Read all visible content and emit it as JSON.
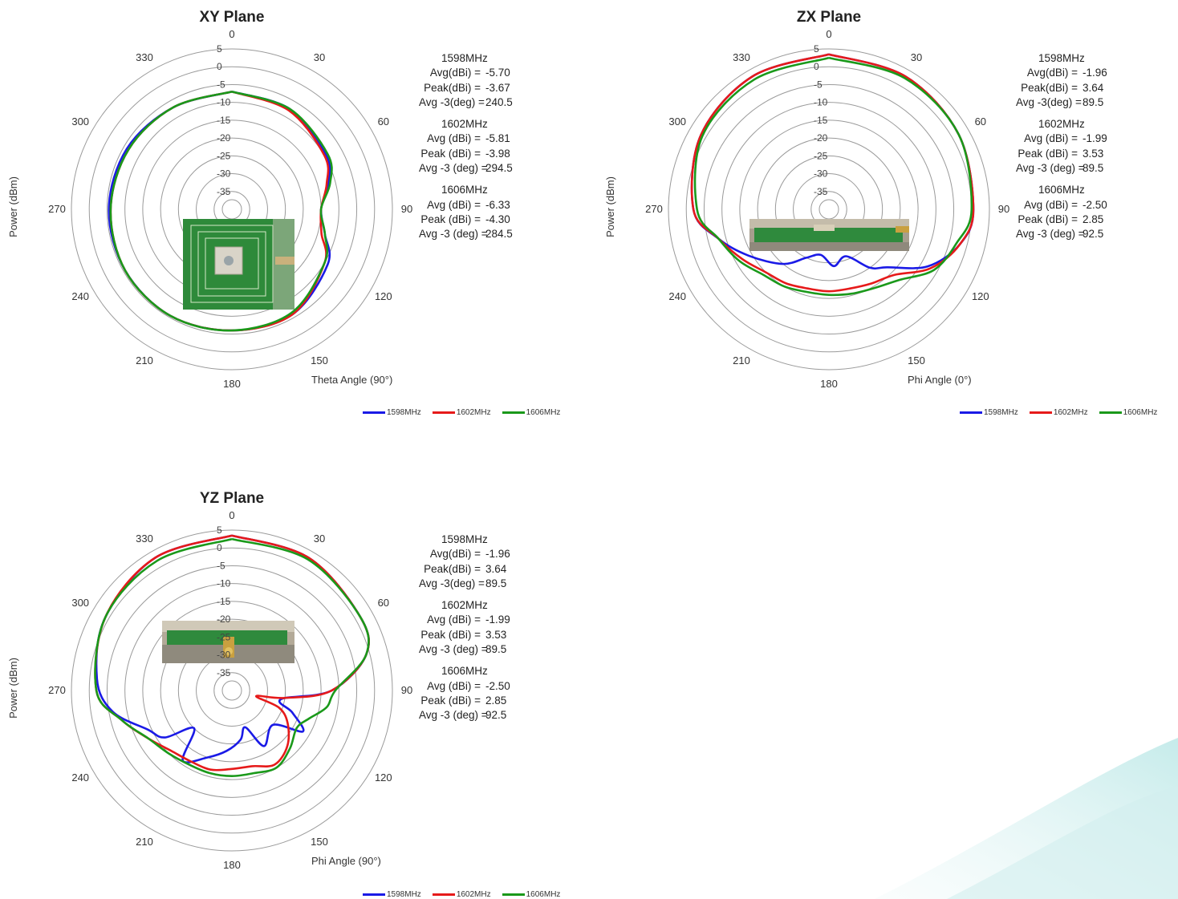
{
  "colors": {
    "s1598": "#1a1ae6",
    "s1602": "#e61a1a",
    "s1606": "#1a991a",
    "grid": "#9a9a9a"
  },
  "chart_data": [
    {
      "type": "polar-line",
      "title": "XY Plane",
      "ylabel": "Power (dBm)",
      "angle_axis_label": "Theta Angle (90°)",
      "angle_ticks": [
        "0",
        "30",
        "60",
        "90",
        "120",
        "150",
        "180",
        "210",
        "240",
        "270",
        "300",
        "330"
      ],
      "radial_ticks": [
        "5",
        "0",
        "-5",
        "-10",
        "-15",
        "-20",
        "-25",
        "-30",
        "-35"
      ],
      "rlim": [
        -40,
        5
      ],
      "grid": true,
      "legend_position": "bottom",
      "inset_photo": "gps-patch-antenna-top-view",
      "series": [
        {
          "name": "1598MHz",
          "key": "s1598",
          "theta": [
            0,
            30,
            60,
            75,
            90,
            105,
            120,
            150,
            180,
            210,
            240,
            270,
            300,
            330,
            360
          ],
          "r": [
            -7,
            -7.5,
            -9.5,
            -12,
            -15,
            -13,
            -9,
            -6,
            -6,
            -5.5,
            -5.5,
            -5.5,
            -6,
            -7,
            -7
          ]
        },
        {
          "name": "1602MHz",
          "key": "s1602",
          "theta": [
            0,
            30,
            60,
            75,
            90,
            105,
            120,
            150,
            180,
            210,
            240,
            270,
            300,
            330,
            360
          ],
          "r": [
            -7,
            -8,
            -10,
            -12.5,
            -15,
            -14,
            -10,
            -6,
            -6,
            -5.5,
            -5.5,
            -6,
            -6.5,
            -7,
            -7
          ]
        },
        {
          "name": "1606MHz",
          "key": "s1606",
          "theta": [
            0,
            30,
            60,
            75,
            90,
            105,
            120,
            150,
            180,
            210,
            240,
            270,
            300,
            330,
            360
          ],
          "r": [
            -7,
            -7.5,
            -9,
            -11.5,
            -15,
            -13,
            -10,
            -6.5,
            -6,
            -5.5,
            -5.5,
            -6,
            -6.5,
            -7,
            -7
          ]
        }
      ],
      "stats": [
        {
          "freq": "1598MHz",
          "rows": [
            {
              "k": "Avg(dBi) =",
              "v": "-5.70"
            },
            {
              "k": "Peak(dBi) =",
              "v": "-3.67"
            },
            {
              "k": "Avg -3(deg) =",
              "v": "240.5"
            }
          ]
        },
        {
          "freq": "1602MHz",
          "rows": [
            {
              "k": "Avg (dBi) =",
              "v": "-5.81"
            },
            {
              "k": "Peak (dBi) =",
              "v": "-3.98"
            },
            {
              "k": "Avg -3 (deg) =",
              "v": "294.5"
            }
          ]
        },
        {
          "freq": "1606MHz",
          "rows": [
            {
              "k": "Avg (dBi) =",
              "v": "-6.33"
            },
            {
              "k": "Peak (dBi) =",
              "v": "-4.30"
            },
            {
              "k": "Avg -3 (deg) =",
              "v": "284.5"
            }
          ]
        }
      ]
    },
    {
      "type": "polar-line",
      "title": "ZX Plane",
      "ylabel": "Power (dBm)",
      "angle_axis_label": "Phi Angle (0°)",
      "angle_ticks": [
        "0",
        "30",
        "60",
        "90",
        "120",
        "150",
        "180",
        "210",
        "240",
        "270",
        "300",
        "330"
      ],
      "radial_ticks": [
        "5",
        "0",
        "-5",
        "-10",
        "-15",
        "-20",
        "-25",
        "-30",
        "-35"
      ],
      "rlim": [
        -40,
        5
      ],
      "grid": true,
      "legend_position": "bottom",
      "inset_photo": "gps-patch-antenna-side-view",
      "series": [
        {
          "name": "1598MHz",
          "key": "s1598",
          "theta": [
            0,
            30,
            60,
            90,
            105,
            120,
            135,
            145,
            160,
            175,
            190,
            205,
            220,
            240,
            255,
            270,
            300,
            330,
            360
          ],
          "r": [
            3.5,
            3,
            2,
            0.5,
            -2,
            -8,
            -17,
            -20,
            -26,
            -24,
            -27,
            -25,
            -20,
            -14,
            -8,
            -2,
            1.5,
            3,
            3.5
          ]
        },
        {
          "name": "1602MHz",
          "key": "s1602",
          "theta": [
            0,
            30,
            60,
            90,
            105,
            120,
            135,
            150,
            165,
            180,
            195,
            210,
            225,
            240,
            255,
            270,
            300,
            330,
            360
          ],
          "r": [
            3.5,
            3,
            2,
            0.5,
            -2,
            -7,
            -14,
            -16,
            -17,
            -17,
            -17,
            -16,
            -15,
            -12,
            -8,
            -2,
            1.5,
            3,
            3.5
          ]
        },
        {
          "name": "1606MHz",
          "key": "s1606",
          "theta": [
            0,
            30,
            60,
            90,
            105,
            120,
            135,
            150,
            165,
            180,
            195,
            210,
            225,
            240,
            255,
            270,
            300,
            330,
            360
          ],
          "r": [
            2.5,
            2.5,
            2,
            0,
            -3,
            -6,
            -12,
            -14.5,
            -15.5,
            -16,
            -16,
            -15,
            -14,
            -11,
            -8,
            -3,
            1,
            2,
            2.5
          ]
        }
      ],
      "stats": [
        {
          "freq": "1598MHz",
          "rows": [
            {
              "k": "Avg(dBi) =",
              "v": "-1.96"
            },
            {
              "k": "Peak(dBi) =",
              "v": "3.64"
            },
            {
              "k": "Avg -3(deg) =",
              "v": "89.5"
            }
          ]
        },
        {
          "freq": "1602MHz",
          "rows": [
            {
              "k": "Avg (dBi) =",
              "v": "-1.99"
            },
            {
              "k": "Peak (dBi) =",
              "v": "3.53"
            },
            {
              "k": "Avg -3 (deg) =",
              "v": "89.5"
            }
          ]
        },
        {
          "freq": "1606MHz",
          "rows": [
            {
              "k": "Avg (dBi) =",
              "v": "-2.50"
            },
            {
              "k": "Peak (dBi) =",
              "v": "2.85"
            },
            {
              "k": "Avg -3 (deg) =",
              "v": "92.5"
            }
          ]
        }
      ]
    },
    {
      "type": "polar-line",
      "title": "YZ Plane",
      "ylabel": "Power (dBm)",
      "angle_axis_label": "Phi Angle (90°)",
      "angle_ticks": [
        "0",
        "30",
        "60",
        "90",
        "120",
        "150",
        "180",
        "210",
        "240",
        "270",
        "300",
        "330"
      ],
      "radial_ticks": [
        "5",
        "0",
        "-5",
        "-10",
        "-15",
        "-20",
        "-25",
        "-30",
        "-35"
      ],
      "rlim": [
        -40,
        5
      ],
      "grid": true,
      "legend_position": "bottom",
      "inset_photo": "gps-patch-antenna-connector-view",
      "series": [
        {
          "name": "1598MHz",
          "key": "s1598",
          "theta": [
            0,
            30,
            60,
            75,
            90,
            100,
            110,
            120,
            130,
            150,
            160,
            170,
            185,
            200,
            215,
            225,
            235,
            245,
            260,
            275,
            300,
            330,
            360
          ],
          "r": [
            3.5,
            3,
            1.5,
            -1,
            -12,
            -26,
            -22,
            -17,
            -25,
            -22,
            -29,
            -26,
            -23,
            -20,
            -16,
            -25,
            -17,
            -14,
            -6,
            -2,
            1,
            3,
            3.5
          ]
        },
        {
          "name": "1602MHz",
          "key": "s1602",
          "theta": [
            0,
            30,
            60,
            75,
            90,
            98,
            103,
            110,
            120,
            135,
            150,
            165,
            180,
            195,
            210,
            225,
            240,
            255,
            270,
            300,
            330,
            360
          ],
          "r": [
            3.5,
            3,
            1.5,
            -1,
            -12,
            -25,
            -33,
            -26,
            -22,
            -18,
            -16,
            -18,
            -18,
            -17,
            -17,
            -16,
            -13,
            -8,
            -2,
            1,
            3,
            3.5
          ]
        },
        {
          "name": "1606MHz",
          "key": "s1606",
          "theta": [
            0,
            30,
            60,
            75,
            90,
            100,
            110,
            120,
            135,
            150,
            165,
            180,
            195,
            210,
            225,
            240,
            255,
            270,
            300,
            330,
            360
          ],
          "r": [
            2.5,
            2.5,
            1.5,
            -1,
            -11,
            -13,
            -17,
            -19,
            -17,
            -15,
            -16,
            -16,
            -16,
            -16,
            -15,
            -13,
            -8,
            -2,
            1,
            2,
            2.5
          ]
        }
      ],
      "stats": [
        {
          "freq": "1598MHz",
          "rows": [
            {
              "k": "Avg(dBi) =",
              "v": "-1.96"
            },
            {
              "k": "Peak(dBi) =",
              "v": "3.64"
            },
            {
              "k": "Avg -3(deg) =",
              "v": "89.5"
            }
          ]
        },
        {
          "freq": "1602MHz",
          "rows": [
            {
              "k": "Avg (dBi) =",
              "v": "-1.99"
            },
            {
              "k": "Peak (dBi) =",
              "v": "3.53"
            },
            {
              "k": "Avg -3 (deg) =",
              "v": "89.5"
            }
          ]
        },
        {
          "freq": "1606MHz",
          "rows": [
            {
              "k": "Avg (dBi) =",
              "v": "-2.50"
            },
            {
              "k": "Peak (dBi) =",
              "v": "2.85"
            },
            {
              "k": "Avg -3 (deg) =",
              "v": "92.5"
            }
          ]
        }
      ]
    }
  ]
}
